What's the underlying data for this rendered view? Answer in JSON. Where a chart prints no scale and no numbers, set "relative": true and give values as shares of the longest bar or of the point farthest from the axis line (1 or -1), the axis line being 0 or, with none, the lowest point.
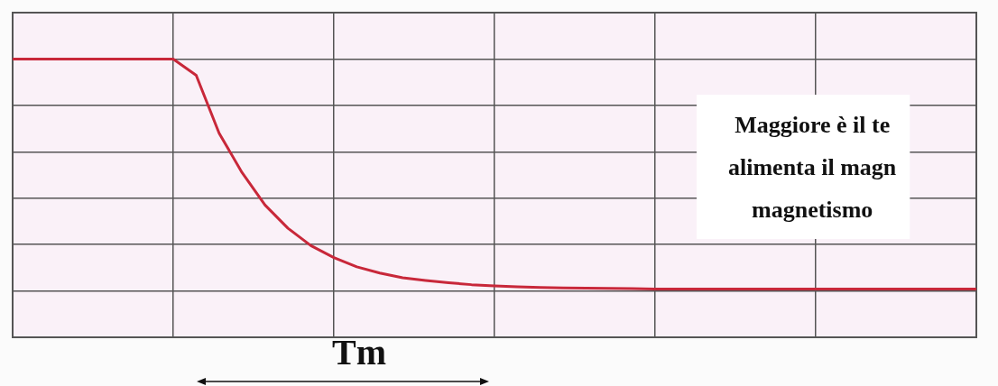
{
  "chart_data": {
    "type": "line",
    "relative": true,
    "grid": true,
    "marker": "none",
    "line_style": "solid",
    "categories": [
      null,
      null,
      null,
      null,
      null,
      null,
      null,
      null,
      null,
      null,
      null,
      null,
      null,
      null,
      null,
      null,
      null,
      null,
      null,
      null,
      null,
      null,
      null,
      null,
      null,
      null,
      null,
      null,
      null,
      null,
      null,
      null,
      null,
      null,
      null,
      null,
      null,
      null,
      null,
      null,
      null,
      null,
      null
    ],
    "series": [
      {
        "color": "#c8283a",
        "values": [
          1,
          1,
          1,
          1,
          1,
          1,
          1,
          1,
          0.93,
          0.68,
          0.51,
          0.37,
          0.27,
          0.195,
          0.144,
          0.104,
          0.077,
          0.057,
          0.045,
          0.035,
          0.027,
          0.022,
          0.018,
          0.015,
          0.013,
          0.012,
          0.011,
          0.01,
          0.008,
          0.008,
          0.008,
          0.008,
          0.008,
          0.008,
          0.008,
          0.008,
          0.008,
          0.008,
          0.008,
          0.008,
          0.008,
          0.008,
          0.008
        ]
      }
    ],
    "annotations": [
      "Tm",
      "Maggiore è il te\nalimenta il magn\nmagnetismo"
    ]
  }
}
